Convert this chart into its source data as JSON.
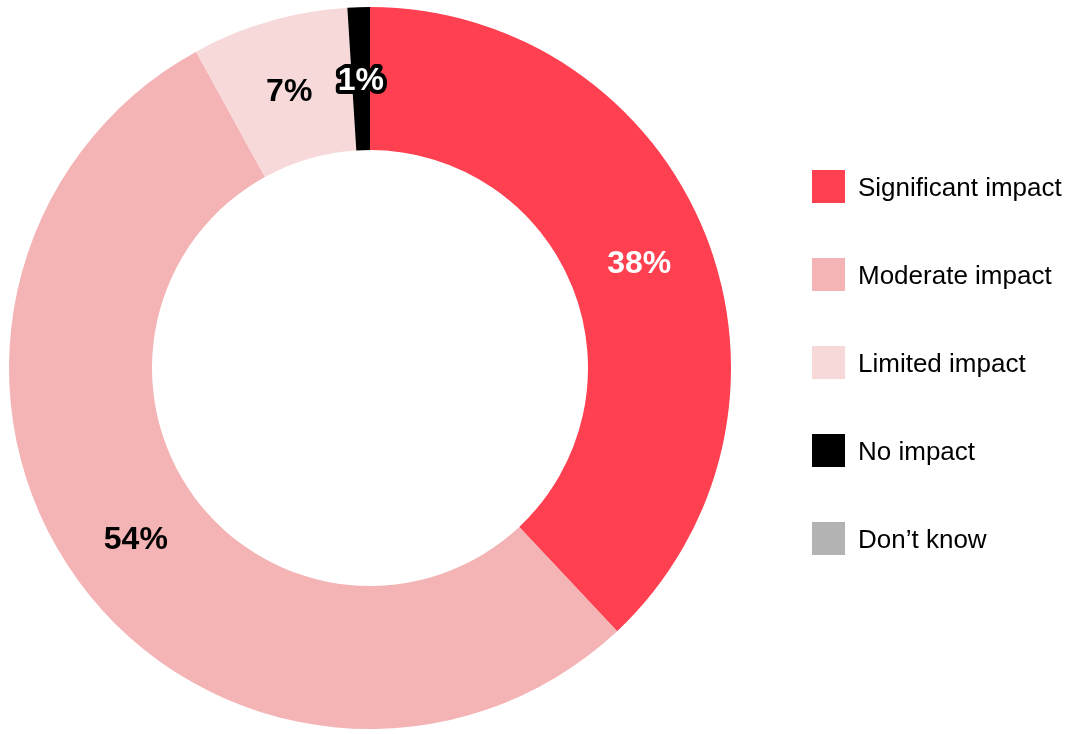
{
  "chart_data": {
    "type": "donut",
    "categories": [
      "Significant impact",
      "Moderate impact",
      "Limited impact",
      "No impact",
      "Don’t know"
    ],
    "values": [
      38,
      54,
      7,
      1,
      0
    ],
    "colors": [
      "#ff4050",
      "#f4b4b6",
      "#f7d9da",
      "#000000",
      "#b3b3b3"
    ],
    "value_labels": [
      "38%",
      "54%",
      "7%",
      "1%",
      null
    ],
    "legend": "right"
  }
}
